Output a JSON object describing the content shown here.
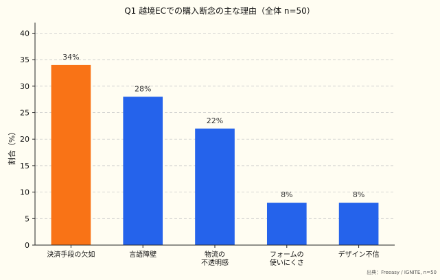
{
  "chart_data": {
    "type": "bar",
    "title": "Q1 越境ECでの購入断念の主な理由（全体 n=50）",
    "ylabel": "割合（%）",
    "xlabel": "",
    "ylim": [
      0,
      42
    ],
    "yticks": [
      0,
      5,
      10,
      15,
      20,
      25,
      30,
      35,
      40
    ],
    "grid": "horizontal-dashed",
    "categories": [
      [
        "決済手段の欠如"
      ],
      [
        "言語障壁"
      ],
      [
        "物流の",
        "不透明感"
      ],
      [
        "フォームの",
        "使いにくさ"
      ],
      [
        "デザイン不信"
      ]
    ],
    "values": [
      34,
      28,
      22,
      8,
      8
    ],
    "data_labels": [
      "34%",
      "28%",
      "22%",
      "8%",
      "8%"
    ],
    "colors": [
      "#f97316",
      "#2563eb",
      "#2563eb",
      "#2563eb",
      "#2563eb"
    ],
    "source": "出典：Freeasy / IGNITE, n=50"
  }
}
